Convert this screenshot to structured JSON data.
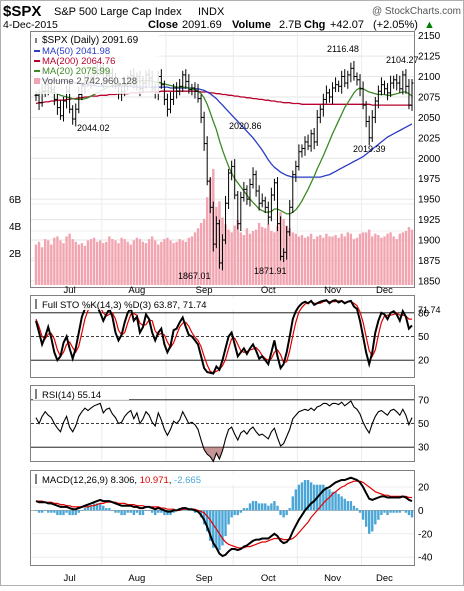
{
  "header": {
    "symbol": "$SPX",
    "name": "S&P 500 Large Cap Index",
    "exchange": "INDX",
    "watermark": "@ StockCharts.com",
    "date": "4-Dec-2015",
    "close_label": "Close",
    "close_value": "2091.69",
    "volume_label": "Volume",
    "volume_value": "2.7B",
    "chg_label": "Chg",
    "chg_value": "+42.07",
    "chg_pct": "(+2.05%)",
    "chg_arrow": "▲",
    "chg_color": "#008000"
  },
  "legend": {
    "price": "$SPX (Daily) 2091.69",
    "ma50": "MA(50) 2041.98",
    "ma200": "MA(200) 2064.76",
    "ma20": "MA(20) 2075.99",
    "volume": "Volume 2,742,960,128"
  },
  "colors": {
    "price_bars": "#000000",
    "ma50": "#2a3cc7",
    "ma200": "#b8002c",
    "ma20": "#3d8a26",
    "volume": "#f2a4b0",
    "sto_k": "#000000",
    "sto_d": "#e00000",
    "rsi": "#000000",
    "macd": "#000000",
    "signal": "#e00000",
    "histogram": "#4aa6d6"
  },
  "months": [
    "Jul",
    "Aug",
    "Sep",
    "Oct",
    "Nov",
    "Dec"
  ],
  "annotations": {
    "a1": "2116.48",
    "a2": "2104.27",
    "a3": "2044.02",
    "a4": "2020.86",
    "a5": "2019.39",
    "a6": "1867.01",
    "a7": "1871.91"
  },
  "panels": {
    "sto_title": "Full STO %K(14,3) %D(3) 63.87, 71.74",
    "sto_value": "71.74",
    "rsi_title": "RSI(14) 55.14",
    "macd_title": "MACD(12,26,9) 8.306, 10.971, -2.665",
    "macd_val1": "8.306",
    "macd_val2": "10.971",
    "macd_val3": "-2.665"
  },
  "chart_data": {
    "type": "line",
    "price_axis": {
      "ticks": [
        1850,
        1875,
        1900,
        1925,
        1950,
        1975,
        2000,
        2025,
        2050,
        2075,
        2100,
        2125,
        2150
      ],
      "ylim": [
        1845,
        2152
      ]
    },
    "volume_axis": {
      "ticks": [
        "2B",
        "4B",
        "6B"
      ]
    },
    "sto_axis": {
      "ticks": [
        20,
        50,
        80
      ],
      "ylim": [
        0,
        100
      ]
    },
    "rsi_axis": {
      "ticks": [
        30,
        50,
        70
      ],
      "ylim": [
        20,
        80
      ]
    },
    "macd_axis": {
      "ticks": [
        -40,
        -20,
        0,
        20
      ],
      "ylim": [
        -45,
        32
      ]
    },
    "price_close": [
      2077,
      2068,
      2082,
      2090,
      2086,
      2084,
      2072,
      2062,
      2052,
      2070,
      2082,
      2060,
      2048,
      2060,
      2078,
      2088,
      2095,
      2092,
      2098,
      2105,
      2108,
      2110,
      2095,
      2101,
      2104,
      2095,
      2090,
      2079,
      2081,
      2090,
      2097,
      2101,
      2090,
      2100,
      2085,
      2092,
      2102,
      2098,
      2086,
      2080,
      2100,
      2090,
      2072,
      2060,
      2072,
      2086,
      2082,
      2088,
      2102,
      2094,
      2084,
      2086,
      2082,
      2073,
      2050,
      2018,
      1972,
      1940,
      1895,
      1920,
      1872,
      1900,
      1945,
      1982,
      1990,
      1955,
      1920,
      1952,
      1962,
      1950,
      1968,
      1980,
      1960,
      1945,
      1948,
      1940,
      1928,
      1955,
      1970,
      1920,
      1880,
      1885,
      1910,
      1940,
      1980,
      1990,
      2008,
      2012,
      2020,
      2015,
      2030,
      2020,
      2050,
      2060,
      2072,
      2080,
      2075,
      2086,
      2090,
      2088,
      2100,
      2092,
      2102,
      2110,
      2100,
      2096,
      2085,
      2065,
      2045,
      2025,
      2050,
      2070,
      2082,
      2090,
      2085,
      2080,
      2092,
      2096,
      2092,
      2085,
      2102,
      2088,
      2065,
      2092
    ],
    "ma20": [
      2078,
      2080,
      2081,
      2082,
      2082,
      2081,
      2080,
      2079,
      2077,
      2076,
      2075,
      2074,
      2073,
      2072,
      2072,
      2072,
      2073,
      2074,
      2076,
      2078,
      2080,
      2082,
      2084,
      2086,
      2088,
      2089,
      2090,
      2090,
      2090,
      2090,
      2091,
      2092,
      2093,
      2094,
      2095,
      2095,
      2095,
      2095,
      2094,
      2093,
      2093,
      2092,
      2091,
      2090,
      2089,
      2088,
      2087,
      2087,
      2087,
      2087,
      2086,
      2085,
      2084,
      2082,
      2079,
      2074,
      2066,
      2056,
      2045,
      2035,
      2022,
      2010,
      2000,
      1990,
      1982,
      1975,
      1970,
      1965,
      1960,
      1955,
      1950,
      1946,
      1942,
      1938,
      1936,
      1934,
      1934,
      1935,
      1938,
      1938,
      1936,
      1934,
      1932,
      1932,
      1934,
      1937,
      1942,
      1948,
      1955,
      1962,
      1970,
      1978,
      1987,
      1995,
      2003,
      2012,
      2021,
      2030,
      2038,
      2046,
      2054,
      2062,
      2068,
      2074,
      2080,
      2084,
      2086,
      2085,
      2083,
      2081,
      2080,
      2079,
      2078,
      2078,
      2078,
      2077,
      2077,
      2078,
      2079,
      2080,
      2081,
      2081,
      2079,
      2076
    ],
    "ma50": [
      2097,
      2097,
      2096,
      2096,
      2096,
      2096,
      2095,
      2095,
      2094,
      2094,
      2094,
      2093,
      2093,
      2092,
      2092,
      2091,
      2090,
      2090,
      2089,
      2089,
      2088,
      2088,
      2088,
      2088,
      2088,
      2088,
      2088,
      2088,
      2088,
      2088,
      2088,
      2088,
      2087,
      2087,
      2087,
      2087,
      2087,
      2087,
      2087,
      2087,
      2087,
      2087,
      2087,
      2087,
      2086,
      2086,
      2086,
      2086,
      2086,
      2086,
      2086,
      2086,
      2085,
      2085,
      2084,
      2083,
      2081,
      2079,
      2076,
      2073,
      2069,
      2065,
      2061,
      2057,
      2053,
      2049,
      2045,
      2041,
      2037,
      2033,
      2029,
      2025,
      2020,
      2015,
      2010,
      2004,
      1998,
      1993,
      1989,
      1986,
      1983,
      1981,
      1979,
      1978,
      1977,
      1977,
      1977,
      1977,
      1977,
      1977,
      1977,
      1977,
      1977,
      1977,
      1978,
      1979,
      1980,
      1982,
      1984,
      1986,
      1988,
      1990,
      1992,
      1994,
      1996,
      1998,
      2000,
      2002,
      2005,
      2008,
      2011,
      2014,
      2017,
      2020,
      2023,
      2026,
      2028,
      2030,
      2032,
      2034,
      2036,
      2038,
      2040,
      2042
    ],
    "ma200": [
      2067,
      2068,
      2068,
      2069,
      2069,
      2070,
      2070,
      2071,
      2071,
      2071,
      2072,
      2072,
      2073,
      2073,
      2074,
      2074,
      2075,
      2075,
      2076,
      2076,
      2076,
      2077,
      2077,
      2077,
      2078,
      2078,
      2078,
      2079,
      2079,
      2079,
      2079,
      2080,
      2080,
      2080,
      2080,
      2081,
      2081,
      2081,
      2081,
      2081,
      2081,
      2082,
      2082,
      2082,
      2082,
      2082,
      2082,
      2082,
      2082,
      2082,
      2082,
      2082,
      2082,
      2082,
      2081,
      2081,
      2081,
      2080,
      2080,
      2079,
      2079,
      2078,
      2078,
      2077,
      2077,
      2076,
      2076,
      2075,
      2075,
      2074,
      2074,
      2073,
      2073,
      2072,
      2072,
      2071,
      2071,
      2070,
      2070,
      2069,
      2069,
      2068,
      2068,
      2068,
      2067,
      2067,
      2067,
      2066,
      2066,
      2066,
      2066,
      2066,
      2066,
      2066,
      2066,
      2066,
      2066,
      2066,
      2066,
      2066,
      2066,
      2066,
      2066,
      2066,
      2066,
      2066,
      2066,
      2066,
      2066,
      2066,
      2065,
      2065,
      2065,
      2065,
      2065,
      2065,
      2065,
      2065,
      2065,
      2065,
      2065,
      2065,
      2065,
      2065
    ],
    "volume": [
      3.0,
      3.2,
      2.8,
      3.4,
      3.3,
      3.0,
      3.5,
      3.6,
      3.3,
      3.1,
      3.6,
      3.8,
      3.4,
      3.2,
      3.0,
      3.1,
      2.9,
      3.3,
      3.4,
      3.5,
      3.2,
      3.3,
      3.1,
      3.2,
      3.6,
      3.4,
      3.3,
      3.1,
      3.5,
      3.4,
      3.2,
      3.0,
      3.3,
      3.5,
      3.4,
      3.2,
      3.1,
      3.4,
      3.6,
      3.3,
      3.0,
      3.2,
      3.4,
      3.5,
      3.3,
      3.1,
      3.2,
      3.4,
      3.3,
      3.2,
      3.5,
      3.6,
      3.9,
      4.2,
      4.6,
      4.9,
      6.5,
      7.9,
      8.6,
      5.8,
      6.2,
      5.0,
      4.5,
      4.1,
      3.9,
      4.4,
      4.8,
      3.9,
      3.7,
      4.2,
      3.8,
      4.0,
      4.1,
      4.6,
      4.3,
      4.2,
      4.5,
      4.0,
      3.9,
      4.4,
      5.4,
      4.9,
      4.4,
      4.2,
      3.9,
      3.8,
      3.6,
      3.7,
      3.5,
      3.6,
      3.8,
      3.4,
      3.6,
      3.7,
      3.5,
      3.8,
      3.6,
      3.6,
      3.7,
      3.5,
      3.8,
      3.6,
      3.9,
      3.8,
      3.4,
      3.5,
      3.8,
      3.9,
      3.9,
      4.1,
      3.6,
      3.8,
      3.7,
      3.5,
      3.6,
      3.8,
      3.9,
      3.6,
      3.4,
      3.8,
      3.9,
      4.0,
      4.3,
      4.1
    ],
    "sto_k": [
      70,
      55,
      40,
      50,
      62,
      48,
      30,
      20,
      25,
      42,
      50,
      35,
      22,
      35,
      55,
      75,
      85,
      88,
      90,
      92,
      88,
      80,
      70,
      78,
      85,
      75,
      55,
      45,
      52,
      68,
      80,
      86,
      70,
      75,
      55,
      62,
      78,
      72,
      55,
      45,
      55,
      60,
      40,
      30,
      38,
      58,
      60,
      68,
      74,
      62,
      52,
      50,
      45,
      40,
      25,
      10,
      5,
      4,
      3,
      12,
      8,
      20,
      35,
      50,
      55,
      40,
      25,
      30,
      35,
      28,
      35,
      40,
      32,
      22,
      25,
      20,
      15,
      30,
      45,
      25,
      10,
      15,
      30,
      50,
      72,
      82,
      88,
      92,
      94,
      92,
      95,
      90,
      92,
      94,
      95,
      96,
      92,
      95,
      96,
      93,
      95,
      92,
      94,
      95,
      88,
      85,
      70,
      50,
      30,
      15,
      30,
      55,
      70,
      80,
      78,
      72,
      80,
      82,
      78,
      70,
      82,
      75,
      60,
      64
    ],
    "sto_d": [
      72,
      62,
      50,
      47,
      53,
      54,
      47,
      33,
      25,
      30,
      40,
      43,
      36,
      30,
      38,
      55,
      72,
      83,
      88,
      90,
      90,
      87,
      80,
      76,
      78,
      80,
      72,
      58,
      52,
      55,
      67,
      78,
      79,
      77,
      67,
      64,
      65,
      71,
      70,
      57,
      52,
      54,
      52,
      43,
      36,
      42,
      52,
      62,
      67,
      68,
      63,
      55,
      49,
      45,
      37,
      25,
      14,
      6,
      4,
      6,
      8,
      13,
      21,
      35,
      47,
      48,
      40,
      32,
      30,
      31,
      33,
      34,
      36,
      32,
      26,
      22,
      20,
      22,
      30,
      33,
      27,
      17,
      18,
      32,
      51,
      68,
      81,
      87,
      91,
      93,
      94,
      92,
      92,
      92,
      94,
      95,
      94,
      94,
      94,
      95,
      95,
      93,
      94,
      94,
      92,
      89,
      81,
      68,
      50,
      32,
      25,
      33,
      52,
      68,
      76,
      77,
      77,
      78,
      80,
      77,
      77,
      76,
      72,
      72
    ],
    "rsi": [
      55,
      50,
      56,
      60,
      57,
      55,
      50,
      46,
      43,
      51,
      56,
      47,
      43,
      48,
      56,
      60,
      63,
      61,
      63,
      65,
      66,
      67,
      59,
      62,
      63,
      58,
      55,
      50,
      51,
      56,
      59,
      61,
      54,
      59,
      50,
      54,
      60,
      57,
      51,
      48,
      59,
      53,
      45,
      40,
      45,
      52,
      50,
      53,
      60,
      55,
      50,
      51,
      49,
      45,
      36,
      28,
      24,
      22,
      18,
      25,
      20,
      27,
      37,
      45,
      47,
      41,
      36,
      42,
      44,
      41,
      45,
      47,
      43,
      40,
      41,
      39,
      37,
      43,
      46,
      38,
      31,
      33,
      39,
      45,
      54,
      57,
      60,
      61,
      62,
      61,
      63,
      61,
      64,
      65,
      67,
      67,
      65,
      67,
      67,
      66,
      68,
      65,
      67,
      69,
      64,
      62,
      58,
      51,
      46,
      42,
      50,
      56,
      60,
      61,
      59,
      57,
      61,
      62,
      60,
      57,
      62,
      57,
      49,
      55
    ],
    "macd": [
      8,
      7,
      7,
      7,
      6,
      6,
      5,
      4,
      3,
      3,
      3,
      2,
      1,
      1,
      2,
      3,
      4,
      5,
      6,
      7,
      8,
      9,
      8,
      8,
      8,
      7,
      6,
      5,
      4,
      4,
      4,
      4,
      3,
      3,
      2,
      2,
      3,
      3,
      2,
      1,
      2,
      1,
      0,
      -1,
      -1,
      0,
      0,
      1,
      2,
      2,
      1,
      1,
      0,
      -1,
      -4,
      -8,
      -14,
      -21,
      -28,
      -32,
      -37,
      -39,
      -38,
      -35,
      -33,
      -33,
      -34,
      -33,
      -31,
      -30,
      -28,
      -26,
      -25,
      -25,
      -24,
      -24,
      -24,
      -22,
      -20,
      -22,
      -26,
      -28,
      -27,
      -24,
      -18,
      -13,
      -8,
      -4,
      0,
      3,
      6,
      8,
      11,
      14,
      17,
      19,
      20,
      22,
      24,
      25,
      26,
      26,
      27,
      28,
      27,
      26,
      24,
      20,
      15,
      10,
      9,
      10,
      11,
      12,
      12,
      11,
      11,
      11,
      11,
      11,
      12,
      11,
      9,
      8
    ],
    "signal": [
      8,
      8,
      8,
      7,
      7,
      7,
      6,
      6,
      5,
      5,
      4,
      4,
      3,
      3,
      3,
      3,
      3,
      3,
      4,
      4,
      5,
      6,
      6,
      7,
      7,
      7,
      7,
      6,
      6,
      6,
      5,
      5,
      5,
      4,
      4,
      4,
      3,
      3,
      3,
      3,
      3,
      2,
      2,
      1,
      1,
      1,
      0,
      0,
      1,
      1,
      1,
      1,
      1,
      0,
      -1,
      -2,
      -5,
      -8,
      -12,
      -16,
      -20,
      -24,
      -27,
      -29,
      -30,
      -31,
      -32,
      -32,
      -32,
      -31,
      -31,
      -30,
      -29,
      -28,
      -27,
      -27,
      -26,
      -25,
      -24,
      -24,
      -24,
      -25,
      -25,
      -25,
      -24,
      -22,
      -19,
      -16,
      -13,
      -10,
      -6,
      -3,
      0,
      3,
      6,
      9,
      11,
      14,
      16,
      18,
      20,
      21,
      23,
      24,
      25,
      25,
      25,
      24,
      22,
      20,
      18,
      16,
      15,
      14,
      13,
      13,
      12,
      12,
      12,
      12,
      12,
      12,
      11,
      11
    ]
  }
}
